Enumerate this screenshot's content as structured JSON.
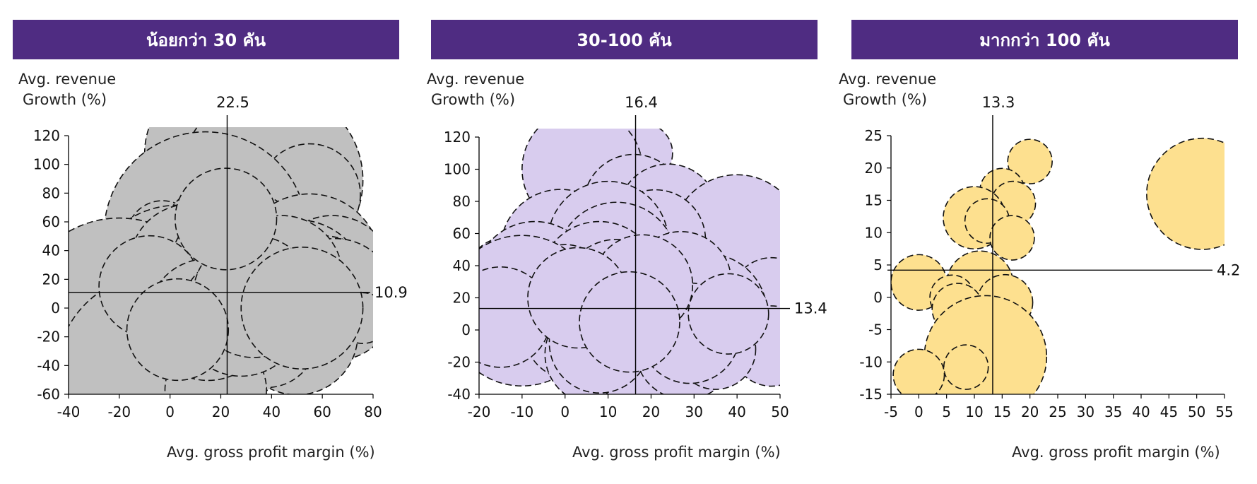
{
  "colors": {
    "header_bg": "#4f2c82"
  },
  "chart_data": [
    {
      "type": "scatter",
      "subtype": "bubble",
      "header": "น้อยกว่า 30 คัน",
      "ylabel_line1": "Avg. revenue",
      "ylabel_line2": "Growth (%)",
      "xlabel": "Avg. gross profit margin (%)",
      "xlim": [
        -40,
        80
      ],
      "ylim": [
        -60,
        120
      ],
      "xticks": [
        -40,
        -20,
        0,
        20,
        40,
        60,
        80
      ],
      "yticks": [
        -60,
        -40,
        -20,
        0,
        20,
        40,
        60,
        80,
        100,
        120
      ],
      "vline": 22.5,
      "hline": 10.9,
      "vline_label": "22.5",
      "hline_label": "10.9",
      "bubble_color": "#c0c0c0",
      "points": [
        {
          "x": 20,
          "y": 108,
          "r": 7.5
        },
        {
          "x": 40,
          "y": 89,
          "r": 9
        },
        {
          "x": 55,
          "y": 79,
          "r": 5
        },
        {
          "x": 20,
          "y": 72,
          "r": 6
        },
        {
          "x": 35,
          "y": 57,
          "r": 5
        },
        {
          "x": 14,
          "y": 52,
          "r": 10
        },
        {
          "x": -3,
          "y": 50,
          "r": 3.5
        },
        {
          "x": 20,
          "y": 45,
          "r": 6
        },
        {
          "x": 30,
          "y": 38,
          "r": 6
        },
        {
          "x": 47,
          "y": 36,
          "r": 5
        },
        {
          "x": 55,
          "y": 30,
          "r": 7
        },
        {
          "x": 64,
          "y": 22,
          "r": 6
        },
        {
          "x": 0,
          "y": 22,
          "r": 5
        },
        {
          "x": 28,
          "y": 16,
          "r": 7
        },
        {
          "x": 10,
          "y": 15,
          "r": 8
        },
        {
          "x": 3,
          "y": 8,
          "r": 9
        },
        {
          "x": -5,
          "y": 5,
          "r": 6
        },
        {
          "x": 40,
          "y": 12,
          "r": 6
        },
        {
          "x": 50,
          "y": 12,
          "r": 7
        },
        {
          "x": 60,
          "y": 8,
          "r": 6
        },
        {
          "x": 65,
          "y": 6,
          "r": 6
        },
        {
          "x": 18,
          "y": 5,
          "r": 5
        },
        {
          "x": 30,
          "y": 0,
          "r": 6
        },
        {
          "x": 42,
          "y": 0,
          "r": 5
        },
        {
          "x": 12,
          "y": -3,
          "r": 5
        },
        {
          "x": 5,
          "y": -5,
          "r": 5
        },
        {
          "x": -20,
          "y": -8,
          "r": 10
        },
        {
          "x": 20,
          "y": -10,
          "r": 6
        },
        {
          "x": 33,
          "y": -12,
          "r": 6
        },
        {
          "x": 46,
          "y": -13,
          "r": 6
        },
        {
          "x": 50,
          "y": -18,
          "r": 6
        },
        {
          "x": 10,
          "y": -20,
          "r": 5
        },
        {
          "x": 25,
          "y": -22,
          "r": 6
        },
        {
          "x": 38,
          "y": -20,
          "r": 5
        },
        {
          "x": 18,
          "y": -35,
          "r": 4
        },
        {
          "x": -5,
          "y": -47,
          "r": 10
        },
        {
          "x": 25,
          "y": -42,
          "r": 2
        },
        {
          "x": 18,
          "y": -57,
          "r": 5
        },
        {
          "x": 76,
          "y": -7,
          "r": 2.5
        },
        {
          "x": 8,
          "y": 30,
          "r": 6
        },
        {
          "x": 24,
          "y": 28,
          "r": 6
        },
        {
          "x": 36,
          "y": 25,
          "r": 5
        },
        {
          "x": -8,
          "y": 15,
          "r": 5
        },
        {
          "x": 15,
          "y": -8,
          "r": 6
        },
        {
          "x": 28,
          "y": -5,
          "r": 6
        },
        {
          "x": 44,
          "y": 22,
          "r": 6
        },
        {
          "x": 33,
          "y": 8,
          "r": 6
        },
        {
          "x": 22,
          "y": 62,
          "r": 5
        },
        {
          "x": 3,
          "y": -15,
          "r": 5
        },
        {
          "x": 52,
          "y": 0,
          "r": 6
        }
      ]
    },
    {
      "type": "scatter",
      "subtype": "bubble",
      "header": "30-100 คัน",
      "ylabel_line1": "Avg. revenue",
      "ylabel_line2": "Growth (%)",
      "xlabel": "Avg. gross profit margin (%)",
      "xlim": [
        -20,
        50
      ],
      "ylim": [
        -40,
        120
      ],
      "xticks": [
        -20,
        -10,
        0,
        10,
        20,
        30,
        40,
        50
      ],
      "yticks": [
        -40,
        -20,
        0,
        20,
        40,
        60,
        80,
        100,
        120
      ],
      "vline": 16.4,
      "hline": 13.4,
      "vline_label": "16.4",
      "hline_label": "13.4",
      "bubble_color": "#d8ccee",
      "points": [
        {
          "x": 9,
          "y": 112,
          "r": 4
        },
        {
          "x": 18,
          "y": 110,
          "r": 3
        },
        {
          "x": 4,
          "y": 100,
          "r": 6
        },
        {
          "x": 16,
          "y": 78,
          "r": 5
        },
        {
          "x": 24,
          "y": 72,
          "r": 5
        },
        {
          "x": 40,
          "y": 56,
          "r": 6.5
        },
        {
          "x": 21,
          "y": 56,
          "r": 5
        },
        {
          "x": -1,
          "y": 50,
          "r": 6
        },
        {
          "x": 10,
          "y": 55,
          "r": 6
        },
        {
          "x": -13,
          "y": 30,
          "r": 4.5
        },
        {
          "x": 12,
          "y": 42,
          "r": 6
        },
        {
          "x": -7,
          "y": 30,
          "r": 6
        },
        {
          "x": 8,
          "y": 30,
          "r": 6
        },
        {
          "x": 22,
          "y": 32,
          "r": 3.5
        },
        {
          "x": 0,
          "y": 25,
          "r": 4.5
        },
        {
          "x": 12,
          "y": 22,
          "r": 5.5
        },
        {
          "x": 30,
          "y": 20,
          "r": 5
        },
        {
          "x": 48,
          "y": 20,
          "r": 4
        },
        {
          "x": -10,
          "y": 12,
          "r": 7.5
        },
        {
          "x": 5,
          "y": 10,
          "r": 6
        },
        {
          "x": 20,
          "y": 12,
          "r": 5
        },
        {
          "x": 33,
          "y": 10,
          "r": 6
        },
        {
          "x": 24,
          "y": 2,
          "r": 6
        },
        {
          "x": 2,
          "y": 0,
          "r": 5
        },
        {
          "x": 13,
          "y": -5,
          "r": 6
        },
        {
          "x": 36,
          "y": -3,
          "r": 4
        },
        {
          "x": 45,
          "y": -5,
          "r": 3
        },
        {
          "x": 48,
          "y": -10,
          "r": 4
        },
        {
          "x": 7,
          "y": -15,
          "r": 5
        },
        {
          "x": 17,
          "y": -15,
          "r": 5
        },
        {
          "x": 28,
          "y": -12,
          "r": 5
        },
        {
          "x": 35,
          "y": -12,
          "r": 4
        },
        {
          "x": 27,
          "y": 30,
          "r": 5
        },
        {
          "x": -15,
          "y": 8,
          "r": 5
        },
        {
          "x": 8,
          "y": -8,
          "r": 5
        },
        {
          "x": 29,
          "y": -2,
          "r": 5
        },
        {
          "x": 18,
          "y": 28,
          "r": 5
        },
        {
          "x": 3,
          "y": 20,
          "r": 5
        },
        {
          "x": 15,
          "y": 5,
          "r": 5
        },
        {
          "x": 38,
          "y": 10,
          "r": 4
        }
      ]
    },
    {
      "type": "scatter",
      "subtype": "bubble",
      "header": "มากกว่า 100 คัน",
      "ylabel_line1": "Avg. revenue",
      "ylabel_line2": "Growth (%)",
      "xlabel": "Avg. gross profit margin (%)",
      "xlim": [
        -5,
        55
      ],
      "ylim": [
        -15,
        25
      ],
      "xticks": [
        -5,
        0,
        5,
        10,
        15,
        20,
        25,
        30,
        35,
        40,
        45,
        50,
        55
      ],
      "yticks": [
        -15,
        -10,
        -5,
        0,
        5,
        10,
        15,
        20,
        25
      ],
      "vline": 13.3,
      "hline": 4.2,
      "vline_label": "13.3",
      "hline_label": "4.2",
      "bubble_color": "#fde08f",
      "points": [
        {
          "x": 51,
          "y": 16,
          "r": 5
        },
        {
          "x": 20,
          "y": 21,
          "r": 2
        },
        {
          "x": 15,
          "y": 16.5,
          "r": 2
        },
        {
          "x": 17,
          "y": 14.5,
          "r": 2
        },
        {
          "x": 10,
          "y": 12.3,
          "r": 2.8
        },
        {
          "x": 12.3,
          "y": 11.8,
          "r": 2
        },
        {
          "x": 16.8,
          "y": 9.2,
          "r": 2
        },
        {
          "x": 0,
          "y": 2.3,
          "r": 2.5
        },
        {
          "x": 11,
          "y": 2,
          "r": 3
        },
        {
          "x": 6,
          "y": 0,
          "r": 2
        },
        {
          "x": 15.5,
          "y": -0.8,
          "r": 2.5
        },
        {
          "x": 7,
          "y": -1.8,
          "r": 2.3
        },
        {
          "x": 10.6,
          "y": -4.4,
          "r": 1.8
        },
        {
          "x": 12,
          "y": -9.2,
          "r": 5.5
        },
        {
          "x": 8.5,
          "y": -10.8,
          "r": 2
        },
        {
          "x": 0,
          "y": -12,
          "r": 2.3
        }
      ]
    }
  ]
}
